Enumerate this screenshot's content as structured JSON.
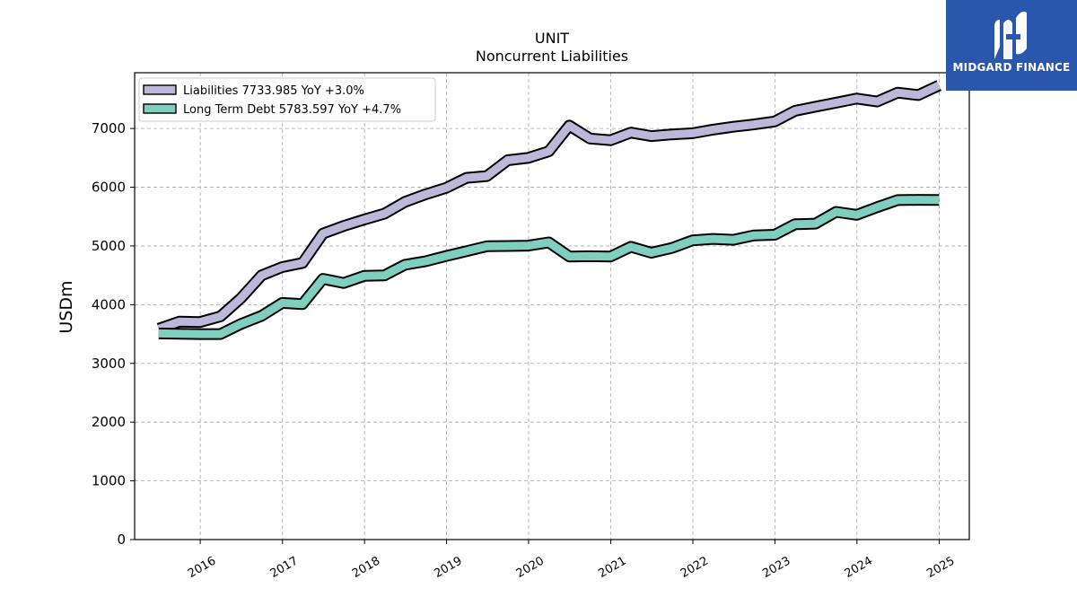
{
  "chart_data": {
    "type": "line",
    "title": "UNIT",
    "subtitle": "Noncurrent  Liabilities",
    "xlabel": "",
    "ylabel": "USDm",
    "ylim": [
      0,
      7950
    ],
    "xlim": [
      "2015-03-15",
      "2025-05-15"
    ],
    "yticks": [
      0,
      1000,
      2000,
      3000,
      4000,
      5000,
      6000,
      7000
    ],
    "xticks": [
      "2016",
      "2017",
      "2018",
      "2019",
      "2020",
      "2021",
      "2022",
      "2023",
      "2024",
      "2025"
    ],
    "grid": true,
    "legend_position": "top-left",
    "series": [
      {
        "name": "Liabilities  7733.985 YoY +3.0%",
        "color": "#bcb8d9",
        "x": [
          "2015-06-30",
          "2015-09-30",
          "2015-12-31",
          "2016-03-31",
          "2016-06-30",
          "2016-09-30",
          "2016-12-31",
          "2017-03-31",
          "2017-06-30",
          "2017-09-30",
          "2017-12-31",
          "2018-03-31",
          "2018-06-30",
          "2018-09-30",
          "2018-12-31",
          "2019-03-31",
          "2019-06-30",
          "2019-09-30",
          "2019-12-31",
          "2020-03-31",
          "2020-06-30",
          "2020-09-30",
          "2020-12-31",
          "2021-03-31",
          "2021-06-30",
          "2021-09-30",
          "2021-12-31",
          "2022-03-31",
          "2022-06-30",
          "2022-09-30",
          "2022-12-31",
          "2023-03-31",
          "2023-06-30",
          "2023-09-30",
          "2023-12-31",
          "2024-03-31",
          "2024-06-30",
          "2024-09-30",
          "2024-12-31"
        ],
        "values": [
          3590,
          3710,
          3705,
          3800,
          4110,
          4500,
          4640,
          4710,
          5210,
          5340,
          5450,
          5550,
          5750,
          5880,
          5990,
          6160,
          6190,
          6460,
          6500,
          6610,
          7050,
          6830,
          6800,
          6930,
          6870,
          6900,
          6920,
          6980,
          7030,
          7070,
          7120,
          7300,
          7370,
          7440,
          7510,
          7460,
          7610,
          7570,
          7734
        ]
      },
      {
        "name": "Long Term Debt  5783.597 YoY +4.7%",
        "color": "#7ecfbf",
        "x": [
          "2015-06-30",
          "2015-09-30",
          "2015-12-31",
          "2016-03-31",
          "2016-06-30",
          "2016-09-30",
          "2016-12-31",
          "2017-03-31",
          "2017-06-30",
          "2017-09-30",
          "2017-12-31",
          "2018-03-31",
          "2018-06-30",
          "2018-09-30",
          "2018-12-31",
          "2019-03-31",
          "2019-06-30",
          "2019-09-30",
          "2019-12-31",
          "2020-03-31",
          "2020-06-30",
          "2020-09-30",
          "2020-12-31",
          "2021-03-31",
          "2021-06-30",
          "2021-09-30",
          "2021-12-31",
          "2022-03-31",
          "2022-06-30",
          "2022-09-30",
          "2022-12-31",
          "2023-03-31",
          "2023-06-30",
          "2023-09-30",
          "2023-12-31",
          "2024-03-31",
          "2024-06-30",
          "2024-09-30",
          "2024-12-31"
        ],
        "values": [
          3510,
          3505,
          3500,
          3500,
          3670,
          3810,
          4030,
          4010,
          4440,
          4370,
          4490,
          4500,
          4680,
          4740,
          4830,
          4910,
          4995,
          5000,
          5005,
          5060,
          4820,
          4825,
          4820,
          4985,
          4885,
          4965,
          5095,
          5120,
          5105,
          5180,
          5190,
          5370,
          5380,
          5580,
          5530,
          5660,
          5780,
          5785,
          5784
        ]
      }
    ]
  },
  "logo": {
    "brand": "MIDGARD FINANCE",
    "color": "#2a56ad",
    "icon": "midgard-m-logo-icon"
  }
}
